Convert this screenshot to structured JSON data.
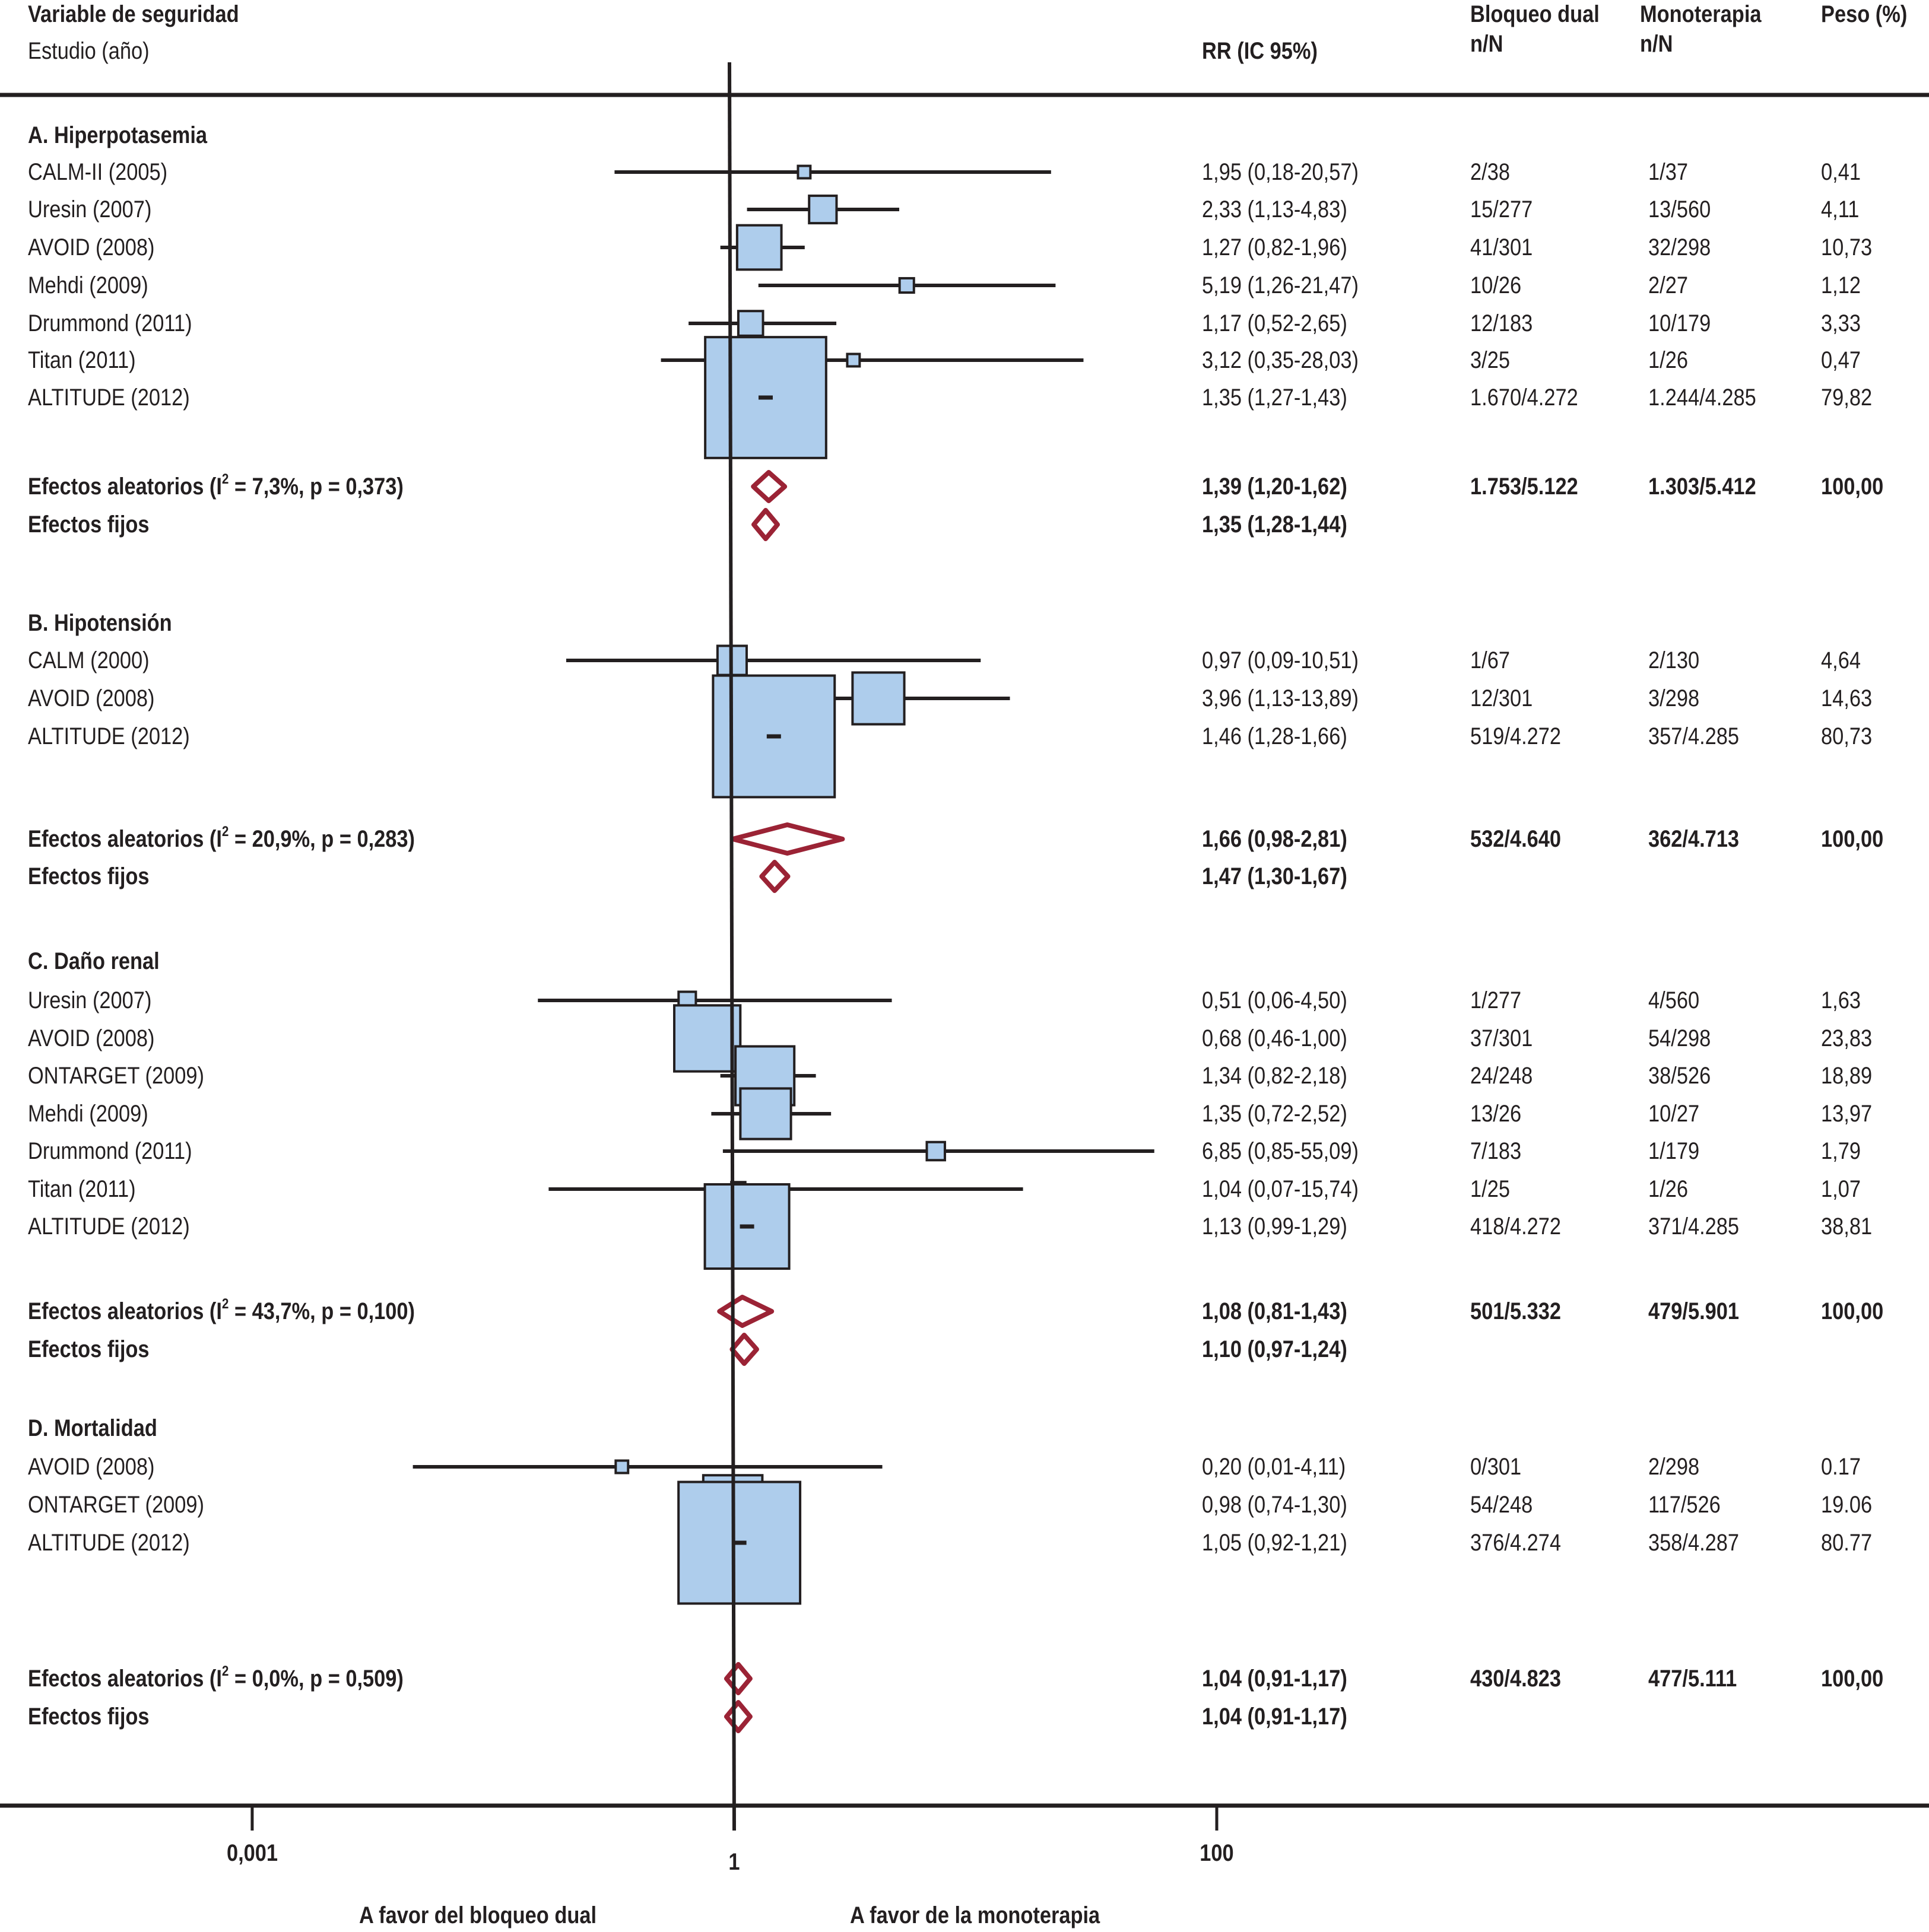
{
  "header": {
    "col_variable": "Variable de seguridad",
    "col_study": "Estudio (año)",
    "col_rr": "RR (IC 95%)",
    "col_dual": "Bloqueo dual",
    "col_dual_sub": "n/N",
    "col_mono": "Monoterapia",
    "col_mono_sub": "n/N",
    "col_weight": "Peso (%)"
  },
  "colors": {
    "box_fill": "#aecdec",
    "box_stroke": "#231f20",
    "ci_line": "#231f20",
    "diamond": "#9b2335",
    "axis": "#231f20"
  },
  "chart_data": {
    "type": "forest",
    "title": "",
    "xlabel": "",
    "x_scale": "log",
    "xticks": [
      {
        "value": 0.001,
        "label": "0,001"
      },
      {
        "value": 1,
        "label": "1"
      },
      {
        "value": 100,
        "label": "100"
      }
    ],
    "favors_left": "A favor del bloqueo dual",
    "favors_right": "A favor de la monoterapia",
    "reference_line": 1,
    "sections": [
      {
        "title": "A. Hiperpotasemia",
        "studies": [
          {
            "label": "CALM-II (2005)",
            "rr": 1.95,
            "lo": 0.18,
            "hi": 20.57,
            "rr_text": "1,95 (0,18-20,57)",
            "dual": "2/38",
            "mono": "1/37",
            "weight_text": "0,41",
            "weight": 0.41
          },
          {
            "label": "Uresin (2007)",
            "rr": 2.33,
            "lo": 1.13,
            "hi": 4.83,
            "rr_text": "2,33 (1,13-4,83)",
            "dual": "15/277",
            "mono": "13/560",
            "weight_text": "4,11",
            "weight": 4.11
          },
          {
            "label": "AVOID (2008)",
            "rr": 1.27,
            "lo": 0.82,
            "hi": 1.96,
            "rr_text": "1,27 (0,82-1,96)",
            "dual": "41/301",
            "mono": "32/298",
            "weight_text": "10,73",
            "weight": 10.73
          },
          {
            "label": "Mehdi (2009)",
            "rr": 5.19,
            "lo": 1.26,
            "hi": 21.47,
            "rr_text": "5,19 (1,26-21,47)",
            "dual": "10/26",
            "mono": "2/27",
            "weight_text": "1,12",
            "weight": 1.12
          },
          {
            "label": "Drummond (2011)",
            "rr": 1.17,
            "lo": 0.52,
            "hi": 2.65,
            "rr_text": "1,17 (0,52-2,65)",
            "dual": "12/183",
            "mono": "10/179",
            "weight_text": "3,33",
            "weight": 3.33
          },
          {
            "label": "Titan (2011)",
            "rr": 3.12,
            "lo": 0.35,
            "hi": 28.03,
            "rr_text": "3,12 (0,35-28,03)",
            "dual": "3/25",
            "mono": "1/26",
            "weight_text": "0,47",
            "weight": 0.47
          },
          {
            "label": "ALTITUDE (2012)",
            "rr": 1.35,
            "lo": 1.27,
            "hi": 1.43,
            "rr_text": "1,35 (1,27-1,43)",
            "dual": "1.670/4.272",
            "mono": "1.244/4.285",
            "weight_text": "79,82",
            "weight": 79.82
          }
        ],
        "random": {
          "label_pre": "Efectos aleatorios (I",
          "label_sup": "2",
          "label_post": " = 7,3%, p = 0,373)",
          "rr": 1.39,
          "lo": 1.2,
          "hi": 1.62,
          "rr_text": "1,39 (1,20-1,62)",
          "dual": "1.753/5.122",
          "mono": "1.303/5.412",
          "weight_text": "100,00"
        },
        "fixed": {
          "label": "Efectos fijos",
          "rr": 1.35,
          "lo": 1.28,
          "hi": 1.44,
          "rr_text": "1,35 (1,28-1,44)"
        }
      },
      {
        "title": "B. Hipotensión",
        "studies": [
          {
            "label": "CALM (2000)",
            "rr": 0.97,
            "lo": 0.09,
            "hi": 10.51,
            "rr_text": "0,97 (0,09-10,51)",
            "dual": "1/67",
            "mono": "2/130",
            "weight_text": "4,64",
            "weight": 4.64
          },
          {
            "label": "AVOID (2008)",
            "rr": 3.96,
            "lo": 1.13,
            "hi": 13.89,
            "rr_text": "3,96 (1,13-13,89)",
            "dual": "12/301",
            "mono": "3/298",
            "weight_text": "14,63",
            "weight": 14.63
          },
          {
            "label": "ALTITUDE (2012)",
            "rr": 1.46,
            "lo": 1.28,
            "hi": 1.66,
            "rr_text": "1,46 (1,28-1,66)",
            "dual": "519/4.272",
            "mono": "357/4.285",
            "weight_text": "80,73",
            "weight": 80.73
          }
        ],
        "random": {
          "label_pre": "Efectos aleatorios (I",
          "label_sup": "2",
          "label_post": " = 20,9%, p = 0,283)",
          "rr": 1.66,
          "lo": 0.98,
          "hi": 2.81,
          "rr_text": "1,66 (0,98-2,81)",
          "dual": "532/4.640",
          "mono": "362/4.713",
          "weight_text": "100,00"
        },
        "fixed": {
          "label": "Efectos fijos",
          "rr": 1.47,
          "lo": 1.3,
          "hi": 1.67,
          "rr_text": "1,47 (1,30-1,67)"
        }
      },
      {
        "title": "C. Daño renal",
        "studies": [
          {
            "label": "Uresin (2007)",
            "rr": 0.51,
            "lo": 0.06,
            "hi": 4.5,
            "rr_text": "0,51 (0,06-4,50)",
            "dual": "1/277",
            "mono": "4/560",
            "weight_text": "1,63",
            "weight": 1.63
          },
          {
            "label": "AVOID (2008)",
            "rr": 0.68,
            "lo": 0.46,
            "hi": 1.0,
            "rr_text": "0,68 (0,46-1,00)",
            "dual": "37/301",
            "mono": "54/298",
            "weight_text": "23,83",
            "weight": 23.83
          },
          {
            "label": "ONTARGET (2009)",
            "rr": 1.34,
            "lo": 0.82,
            "hi": 2.18,
            "rr_text": "1,34 (0,82-2,18)",
            "dual": "24/248",
            "mono": "38/526",
            "weight_text": "18,89",
            "weight": 18.89
          },
          {
            "label": "Mehdi (2009)",
            "rr": 1.35,
            "lo": 0.72,
            "hi": 2.52,
            "rr_text": "1,35 (0,72-2,52)",
            "dual": "13/26",
            "mono": "10/27",
            "weight_text": "13,97",
            "weight": 13.97
          },
          {
            "label": "Drummond (2011)",
            "rr": 6.85,
            "lo": 0.85,
            "hi": 55.09,
            "rr_text": "6,85 (0,85-55,09)",
            "dual": "7/183",
            "mono": "1/179",
            "weight_text": "1,79",
            "weight": 1.79
          },
          {
            "label": "Titan (2011)",
            "rr": 1.04,
            "lo": 0.07,
            "hi": 15.74,
            "rr_text": "1,04 (0,07-15,74)",
            "dual": "1/25",
            "mono": "1/26",
            "weight_text": "1,07",
            "weight": 1.07
          },
          {
            "label": "ALTITUDE (2012)",
            "rr": 1.13,
            "lo": 0.99,
            "hi": 1.29,
            "rr_text": "1,13 (0,99-1,29)",
            "dual": "418/4.272",
            "mono": "371/4.285",
            "weight_text": "38,81",
            "weight": 38.81
          }
        ],
        "random": {
          "label_pre": "Efectos aleatorios (I",
          "label_sup": "2",
          "label_post": " = 43,7%, p = 0,100)",
          "rr": 1.08,
          "lo": 0.81,
          "hi": 1.43,
          "rr_text": "1,08 (0,81-1,43)",
          "dual": "501/5.332",
          "mono": "479/5.901",
          "weight_text": "100,00"
        },
        "fixed": {
          "label": "Efectos fijos",
          "rr": 1.1,
          "lo": 0.97,
          "hi": 1.24,
          "rr_text": "1,10 (0,97-1,24)"
        }
      },
      {
        "title": "D. Mortalidad",
        "studies": [
          {
            "label": "AVOID (2008)",
            "rr": 0.2,
            "lo": 0.01,
            "hi": 4.11,
            "rr_text": "0,20 (0,01-4,11)",
            "dual": "0/301",
            "mono": "2/298",
            "weight_text": "0.17",
            "weight": 0.17
          },
          {
            "label": "ONTARGET (2009)",
            "rr": 0.98,
            "lo": 0.74,
            "hi": 1.3,
            "rr_text": "0,98 (0,74-1,30)",
            "dual": "54/248",
            "mono": "117/526",
            "weight_text": "19.06",
            "weight": 19.06
          },
          {
            "label": "ALTITUDE (2012)",
            "rr": 1.05,
            "lo": 0.92,
            "hi": 1.21,
            "rr_text": "1,05 (0,92-1,21)",
            "dual": "376/4.274",
            "mono": "358/4.287",
            "weight_text": "80.77",
            "weight": 80.77
          }
        ],
        "random": {
          "label_pre": "Efectos aleatorios (I",
          "label_sup": "2",
          "label_post": " = 0,0%, p = 0,509)",
          "rr": 1.04,
          "lo": 0.91,
          "hi": 1.17,
          "rr_text": "1,04 (0,91-1,17)",
          "dual": "430/4.823",
          "mono": "477/5.111",
          "weight_text": "100,00"
        },
        "fixed": {
          "label": "Efectos fijos",
          "rr": 1.04,
          "lo": 0.91,
          "hi": 1.17,
          "rr_text": "1,04 (0,91-1,17)"
        }
      }
    ]
  }
}
